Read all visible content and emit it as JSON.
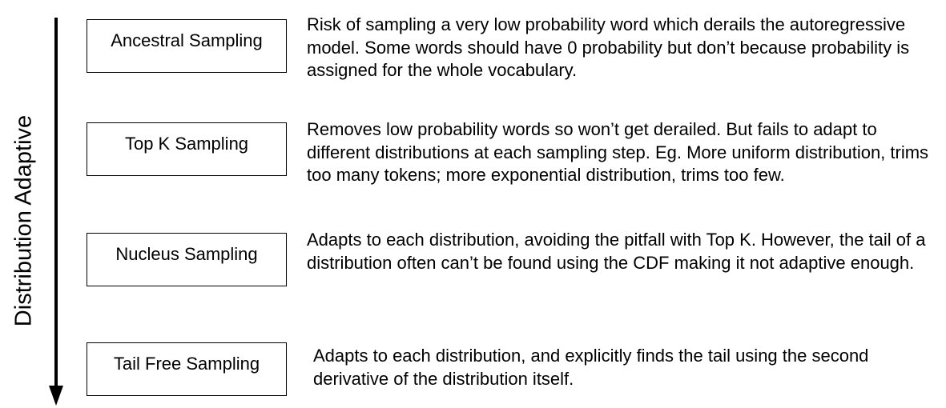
{
  "axis": {
    "label": "Distribution Adaptive"
  },
  "methods": [
    {
      "name": "Ancestral Sampling",
      "description": "Risk of sampling a very low probability word which derails the autoregressive model. Some words should have 0 probability but don’t because probability is assigned for the whole vocabulary."
    },
    {
      "name": "Top K Sampling",
      "description": "Removes low probability words so won’t get derailed. But fails to adapt to different distributions at each sampling step. Eg. More uniform distribution, trims too many tokens; more exponential distribution, trims too few."
    },
    {
      "name": "Nucleus Sampling",
      "description": "Adapts to each distribution, avoiding the pitfall with Top K. However, the tail of a distribution often can’t be found using the CDF making it not adaptive enough."
    },
    {
      "name": "Tail Free Sampling",
      "description": "Adapts to each distribution, and explicitly finds the tail using the second derivative of the distribution itself."
    }
  ]
}
